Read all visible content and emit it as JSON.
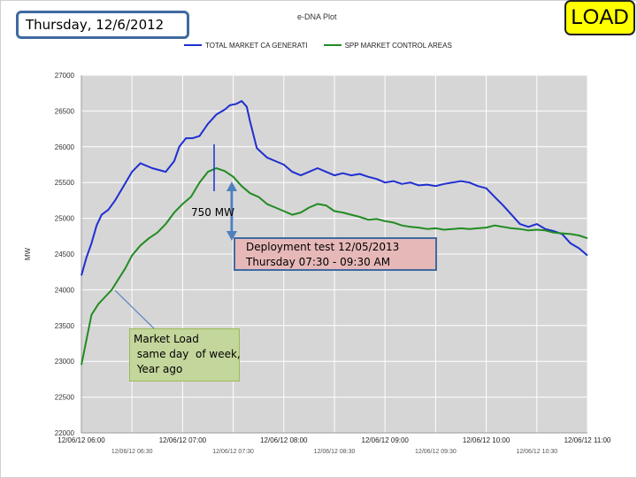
{
  "header": {
    "date_label": "Thursday, 12/6/2012",
    "badge": "LOAD"
  },
  "chart_data": {
    "type": "line",
    "title": "e-DNA Plot",
    "ylabel": "MW",
    "ylim": [
      22000,
      27000
    ],
    "yticks": [
      22000,
      22500,
      23000,
      23500,
      24000,
      24500,
      25000,
      25500,
      26000,
      26500,
      27000
    ],
    "ytick_labels": [
      "22000",
      "22500",
      "23000",
      "23500",
      "24000",
      "24500",
      "25000",
      "25500",
      "26000",
      "26500",
      "27000"
    ],
    "xlim": [
      0,
      300
    ],
    "xticks": [
      0,
      60,
      120,
      180,
      240,
      300
    ],
    "xtick_labels": [
      "12/06/12 06:00",
      "12/06/12 07:00",
      "12/06/12 08:00",
      "12/06/12 09:00",
      "12/06/12 10:00",
      "12/06/12 11:00"
    ],
    "xtick_labels_minor": [
      "12/06/12 06:30",
      "12/06/12 07:30",
      "12/06/12 08:30",
      "12/06/12 09:30",
      "12/06/12 10:30"
    ],
    "grid": true,
    "legend_position": "top",
    "series": [
      {
        "name": "TOTAL MARKET CA GENERATI",
        "color": "#1f2fd0",
        "x": [
          0,
          3,
          6,
          9,
          12,
          16,
          20,
          25,
          30,
          35,
          42,
          50,
          55,
          58,
          62,
          66,
          70,
          75,
          80,
          85,
          88,
          92,
          95,
          98,
          100,
          104,
          110,
          115,
          120,
          125,
          130,
          135,
          140,
          145,
          150,
          155,
          160,
          165,
          170,
          175,
          180,
          185,
          190,
          195,
          200,
          205,
          210,
          215,
          220,
          225,
          230,
          235,
          240,
          245,
          250,
          255,
          260,
          265,
          270,
          275,
          280,
          285,
          290,
          295,
          300
        ],
        "y": [
          24200,
          24450,
          24650,
          24900,
          25050,
          25120,
          25250,
          25450,
          25650,
          25770,
          25700,
          25650,
          25800,
          26000,
          26120,
          26120,
          26150,
          26320,
          26450,
          26520,
          26580,
          26600,
          26640,
          26560,
          26350,
          25980,
          25850,
          25800,
          25750,
          25650,
          25600,
          25650,
          25700,
          25650,
          25600,
          25630,
          25600,
          25620,
          25580,
          25550,
          25500,
          25520,
          25480,
          25500,
          25460,
          25470,
          25450,
          25480,
          25500,
          25520,
          25500,
          25450,
          25420,
          25300,
          25180,
          25050,
          24920,
          24880,
          24920,
          24850,
          24820,
          24780,
          24650,
          24580,
          24480
        ]
      },
      {
        "name": "SPP MARKET CONTROL AREAS",
        "color": "#228b22",
        "x": [
          0,
          3,
          6,
          10,
          14,
          18,
          22,
          26,
          30,
          35,
          40,
          45,
          50,
          55,
          60,
          65,
          70,
          75,
          80,
          85,
          90,
          95,
          100,
          105,
          110,
          115,
          120,
          125,
          130,
          135,
          140,
          145,
          150,
          155,
          160,
          165,
          170,
          175,
          180,
          185,
          190,
          195,
          200,
          205,
          210,
          215,
          220,
          225,
          230,
          235,
          240,
          245,
          250,
          255,
          260,
          265,
          270,
          275,
          280,
          285,
          290,
          295,
          300
        ],
        "y": [
          22950,
          23300,
          23650,
          23800,
          23900,
          24000,
          24150,
          24300,
          24480,
          24620,
          24720,
          24800,
          24920,
          25080,
          25200,
          25300,
          25500,
          25650,
          25700,
          25660,
          25580,
          25450,
          25350,
          25300,
          25200,
          25150,
          25100,
          25050,
          25080,
          25150,
          25200,
          25180,
          25100,
          25080,
          25050,
          25020,
          24980,
          24990,
          24960,
          24940,
          24900,
          24880,
          24870,
          24850,
          24860,
          24840,
          24850,
          24860,
          24850,
          24860,
          24870,
          24900,
          24880,
          24860,
          24850,
          24830,
          24840,
          24830,
          24800,
          24790,
          24780,
          24760,
          24720
        ]
      }
    ],
    "annotations": {
      "mw_gap": "750 MW",
      "deployment_line1": "Deployment test   12/05/2013",
      "deployment_line2": "Thursday   07:30  -  09:30 AM",
      "market_load": "Market Load\n same day  of week,\n Year ago"
    }
  }
}
